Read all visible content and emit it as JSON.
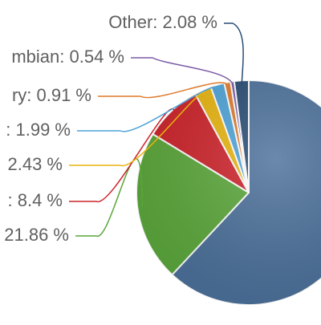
{
  "chart_data": {
    "type": "pie",
    "start_angle_deg": 0,
    "slices": [
      {
        "name": "",
        "value": 62.2,
        "label": "",
        "color": "#4a6f99"
      },
      {
        "name": "",
        "value": 21.86,
        "label": "21.86 %",
        "color": "#5aa63a"
      },
      {
        "name": "",
        "value": 8.4,
        "label": ": 8.4 %",
        "color": "#cc2229"
      },
      {
        "name": "",
        "value": 2.43,
        "label": "2.43 %",
        "color": "#e8b40f"
      },
      {
        "name": "",
        "value": 1.99,
        "label": ": 1.99 %",
        "color": "#4ea3d8"
      },
      {
        "name": "",
        "value": 0.91,
        "label": "ry: 0.91 %",
        "color": "#e07a2a"
      },
      {
        "name": "Symbian",
        "value": 0.54,
        "label": "mbian: 0.54 %",
        "color": "#7b5aa6"
      },
      {
        "name": "Other",
        "value": 2.08,
        "label": "Other: 2.08 %",
        "color": "#274b73"
      }
    ]
  }
}
